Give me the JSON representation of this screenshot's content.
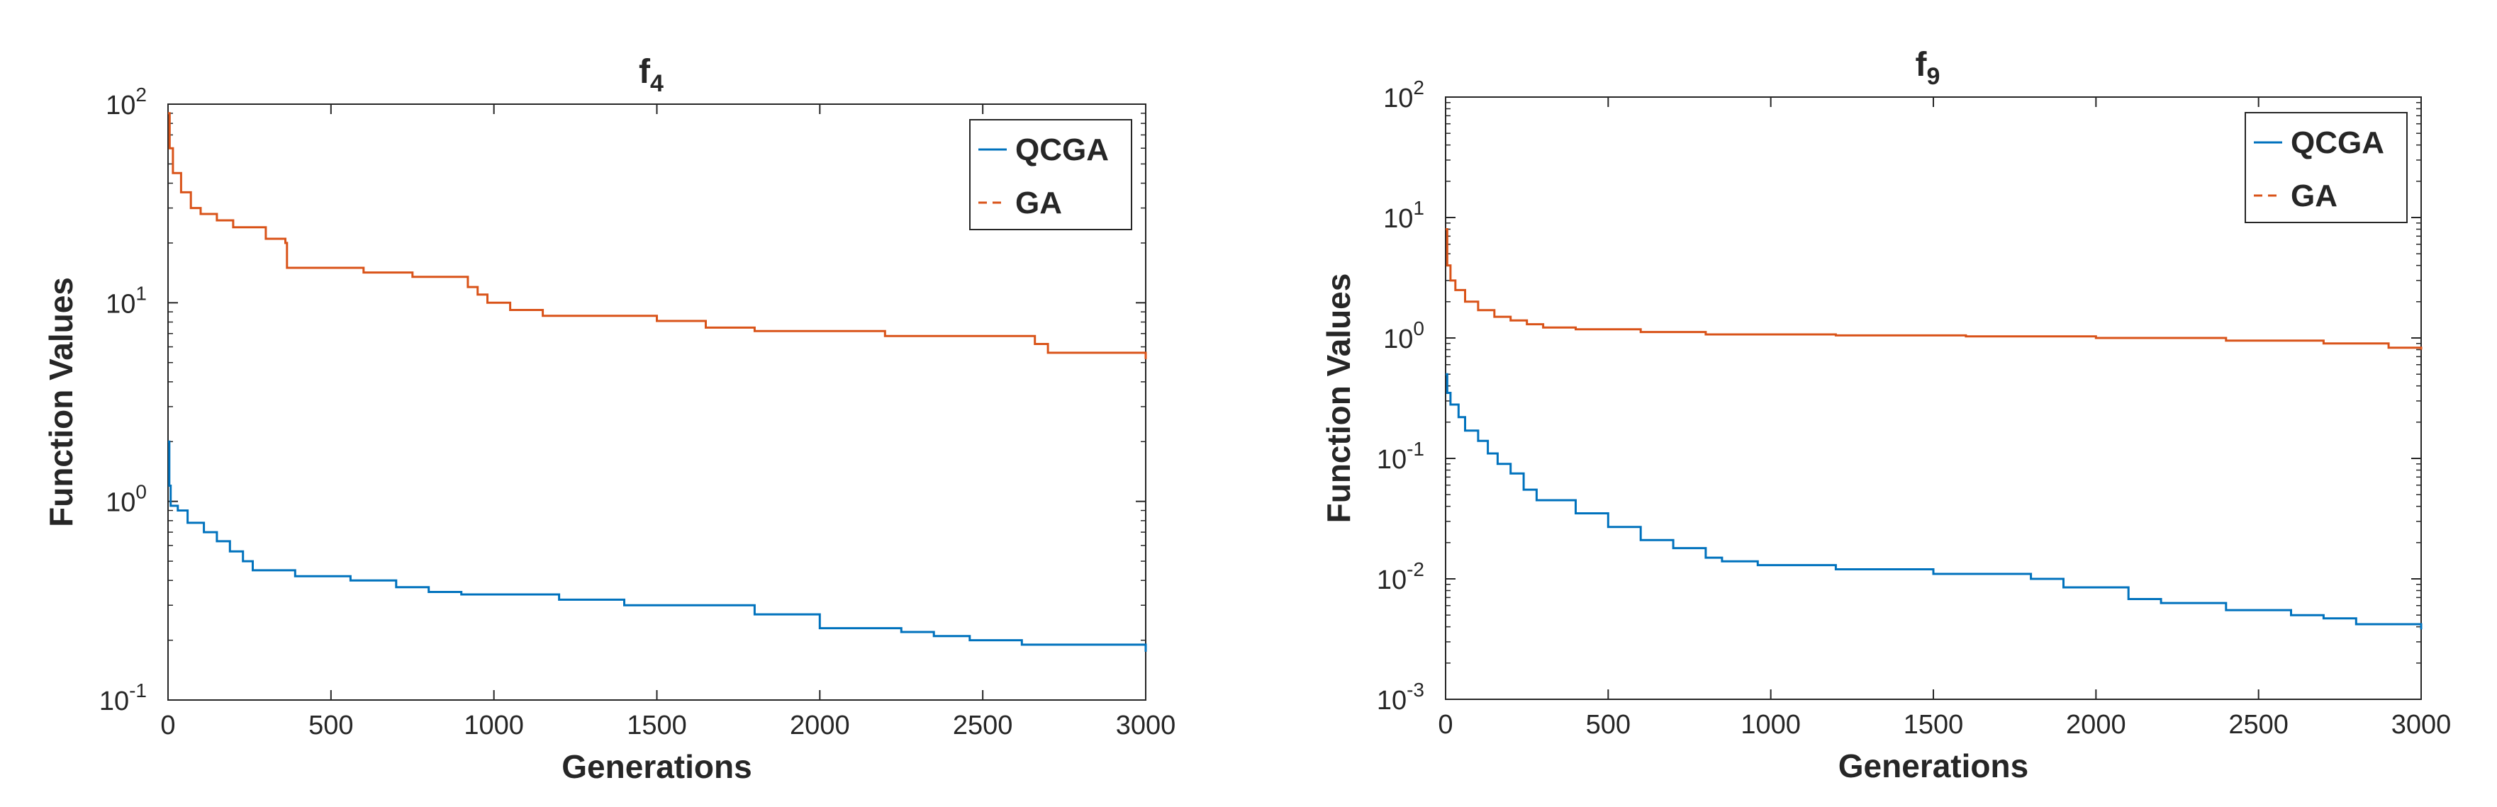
{
  "chart_data": [
    {
      "type": "line",
      "title": "f",
      "title_subscript": "4",
      "xlabel": "Generations",
      "ylabel": "Function Values",
      "xlim": [
        0,
        3000
      ],
      "ylim": [
        0.1,
        100
      ],
      "yscale": "log",
      "x_ticks": [
        0,
        500,
        1000,
        1500,
        2000,
        2500,
        3000
      ],
      "x_tick_labels": [
        "0",
        "500",
        "1000",
        "1500",
        "2000",
        "2500",
        "3000"
      ],
      "y_ticks": [
        0.1,
        1,
        10,
        100
      ],
      "y_tick_base": "10",
      "y_tick_exponents": [
        "-1",
        "0",
        "1",
        "2"
      ],
      "legend_position": "top-right",
      "series": [
        {
          "name": "QCGA",
          "color": "#0072BD",
          "style": "solid",
          "points": [
            [
              0,
              2.0
            ],
            [
              4,
              1.2
            ],
            [
              8,
              0.95
            ],
            [
              30,
              0.9
            ],
            [
              60,
              0.78
            ],
            [
              110,
              0.7
            ],
            [
              150,
              0.63
            ],
            [
              190,
              0.56
            ],
            [
              230,
              0.5
            ],
            [
              260,
              0.45
            ],
            [
              390,
              0.42
            ],
            [
              560,
              0.4
            ],
            [
              700,
              0.37
            ],
            [
              800,
              0.35
            ],
            [
              900,
              0.34
            ],
            [
              1200,
              0.32
            ],
            [
              1400,
              0.3
            ],
            [
              1800,
              0.27
            ],
            [
              2000,
              0.23
            ],
            [
              2250,
              0.22
            ],
            [
              2350,
              0.21
            ],
            [
              2460,
              0.2
            ],
            [
              2620,
              0.19
            ],
            [
              3000,
              0.175
            ]
          ]
        },
        {
          "name": "GA",
          "color": "#D95319",
          "style": "dashed",
          "points": [
            [
              0,
              90
            ],
            [
              5,
              60
            ],
            [
              15,
              45
            ],
            [
              40,
              36
            ],
            [
              70,
              30
            ],
            [
              100,
              28
            ],
            [
              150,
              26
            ],
            [
              200,
              24
            ],
            [
              300,
              21
            ],
            [
              360,
              20
            ],
            [
              365,
              15
            ],
            [
              600,
              14.2
            ],
            [
              750,
              13.5
            ],
            [
              920,
              12
            ],
            [
              950,
              11
            ],
            [
              980,
              10
            ],
            [
              1050,
              9.2
            ],
            [
              1150,
              8.6
            ],
            [
              1500,
              8.1
            ],
            [
              1650,
              7.5
            ],
            [
              1800,
              7.2
            ],
            [
              2200,
              6.8
            ],
            [
              2660,
              6.2
            ],
            [
              2700,
              5.6
            ],
            [
              3000,
              5.2
            ]
          ]
        }
      ]
    },
    {
      "type": "line",
      "title": "f",
      "title_subscript": "9",
      "xlabel": "Generations",
      "ylabel": "Function Values",
      "xlim": [
        0,
        3000
      ],
      "ylim": [
        0.001,
        100
      ],
      "yscale": "log",
      "x_ticks": [
        0,
        500,
        1000,
        1500,
        2000,
        2500,
        3000
      ],
      "x_tick_labels": [
        "0",
        "500",
        "1000",
        "1500",
        "2000",
        "2500",
        "3000"
      ],
      "y_ticks": [
        0.001,
        0.01,
        0.1,
        1,
        10,
        100
      ],
      "y_tick_base": "10",
      "y_tick_exponents": [
        "-3",
        "-2",
        "-1",
        "0",
        "1",
        "2"
      ],
      "legend_position": "top-right",
      "series": [
        {
          "name": "QCGA",
          "color": "#0072BD",
          "style": "solid",
          "points": [
            [
              0,
              0.5
            ],
            [
              5,
              0.35
            ],
            [
              15,
              0.28
            ],
            [
              40,
              0.22
            ],
            [
              60,
              0.17
            ],
            [
              100,
              0.14
            ],
            [
              130,
              0.11
            ],
            [
              160,
              0.09
            ],
            [
              200,
              0.075
            ],
            [
              240,
              0.055
            ],
            [
              280,
              0.045
            ],
            [
              400,
              0.035
            ],
            [
              500,
              0.027
            ],
            [
              600,
              0.021
            ],
            [
              700,
              0.018
            ],
            [
              800,
              0.015
            ],
            [
              850,
              0.014
            ],
            [
              960,
              0.013
            ],
            [
              1200,
              0.012
            ],
            [
              1500,
              0.011
            ],
            [
              1800,
              0.01
            ],
            [
              1900,
              0.0085
            ],
            [
              2100,
              0.0068
            ],
            [
              2200,
              0.0063
            ],
            [
              2400,
              0.0055
            ],
            [
              2600,
              0.005
            ],
            [
              2700,
              0.0047
            ],
            [
              2800,
              0.0042
            ],
            [
              3000,
              0.0038
            ]
          ]
        },
        {
          "name": "GA",
          "color": "#D95319",
          "style": "dashed",
          "points": [
            [
              0,
              8
            ],
            [
              5,
              4
            ],
            [
              15,
              3
            ],
            [
              30,
              2.5
            ],
            [
              60,
              2.0
            ],
            [
              100,
              1.7
            ],
            [
              150,
              1.5
            ],
            [
              200,
              1.4
            ],
            [
              250,
              1.3
            ],
            [
              300,
              1.22
            ],
            [
              400,
              1.18
            ],
            [
              600,
              1.12
            ],
            [
              800,
              1.07
            ],
            [
              1200,
              1.05
            ],
            [
              1600,
              1.03
            ],
            [
              2000,
              1.0
            ],
            [
              2400,
              0.95
            ],
            [
              2700,
              0.9
            ],
            [
              2900,
              0.83
            ],
            [
              3000,
              0.8
            ]
          ]
        }
      ]
    }
  ]
}
